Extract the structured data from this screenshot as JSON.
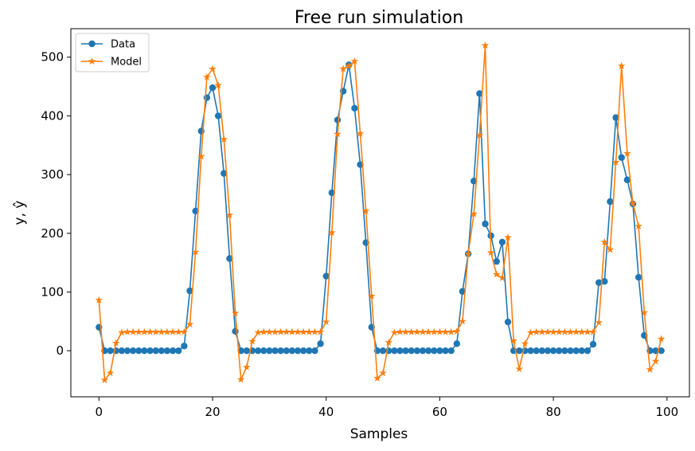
{
  "chart_data": {
    "type": "line",
    "title": "Free run simulation",
    "x_label": "Samples",
    "y_label": "y, ŷ",
    "x": [
      0,
      1,
      2,
      3,
      4,
      5,
      6,
      7,
      8,
      9,
      10,
      11,
      12,
      13,
      14,
      15,
      16,
      17,
      18,
      19,
      20,
      21,
      22,
      23,
      24,
      25,
      26,
      27,
      28,
      29,
      30,
      31,
      32,
      33,
      34,
      35,
      36,
      37,
      38,
      39,
      40,
      41,
      42,
      43,
      44,
      45,
      46,
      47,
      48,
      49,
      50,
      51,
      52,
      53,
      54,
      55,
      56,
      57,
      58,
      59,
      60,
      61,
      62,
      63,
      64,
      65,
      66,
      67,
      68,
      69,
      70,
      71,
      72,
      73,
      74,
      75,
      76,
      77,
      78,
      79,
      80,
      81,
      82,
      83,
      84,
      85,
      86,
      87,
      88,
      89,
      90,
      91,
      92,
      93,
      94,
      95,
      96,
      97,
      98,
      99
    ],
    "series": [
      {
        "name": "Data",
        "color": "#1f77b4",
        "marker": "circle",
        "values": [
          40,
          0,
          0,
          0,
          0,
          0,
          0,
          0,
          0,
          0,
          0,
          0,
          0,
          0,
          0,
          8,
          102,
          238,
          374,
          431,
          448,
          400,
          302,
          157,
          33,
          0,
          0,
          0,
          0,
          0,
          0,
          0,
          0,
          0,
          0,
          0,
          0,
          0,
          0,
          12,
          127,
          269,
          393,
          442,
          487,
          413,
          317,
          184,
          40,
          0,
          0,
          0,
          0,
          0,
          0,
          0,
          0,
          0,
          0,
          0,
          0,
          0,
          0,
          12,
          101,
          165,
          289,
          438,
          216,
          196,
          152,
          185,
          49,
          0,
          0,
          0,
          0,
          0,
          0,
          0,
          0,
          0,
          0,
          0,
          0,
          0,
          0,
          11,
          116,
          118,
          254,
          397,
          329,
          291,
          250,
          125,
          26,
          0,
          0,
          0
        ]
      },
      {
        "name": "Model",
        "color": "#ff7f0e",
        "marker": "star",
        "values": [
          86,
          -50,
          -38,
          13,
          31,
          32,
          32,
          32,
          32,
          32,
          32,
          32,
          32,
          32,
          32,
          32,
          45,
          168,
          331,
          466,
          480,
          452,
          360,
          231,
          64,
          -49,
          -28,
          16,
          31,
          32,
          32,
          32,
          32,
          32,
          32,
          32,
          32,
          32,
          32,
          32,
          49,
          201,
          369,
          480,
          485,
          493,
          370,
          238,
          93,
          -47,
          -38,
          14,
          31,
          32,
          32,
          32,
          32,
          32,
          32,
          32,
          32,
          32,
          32,
          33,
          50,
          165,
          233,
          367,
          520,
          167,
          130,
          124,
          193,
          17,
          -31,
          12,
          31,
          32,
          32,
          32,
          32,
          32,
          32,
          32,
          32,
          32,
          32,
          32,
          48,
          185,
          172,
          321,
          485,
          336,
          251,
          212,
          65,
          -32,
          -18,
          20
        ]
      }
    ],
    "xlim": [
      -4.95,
      103.95
    ],
    "ylim": [
      -78.5,
      548.5
    ],
    "xticks": [
      0,
      20,
      40,
      60,
      80,
      100
    ],
    "yticks": [
      0,
      100,
      200,
      300,
      400,
      500
    ],
    "legend": "upper left"
  }
}
